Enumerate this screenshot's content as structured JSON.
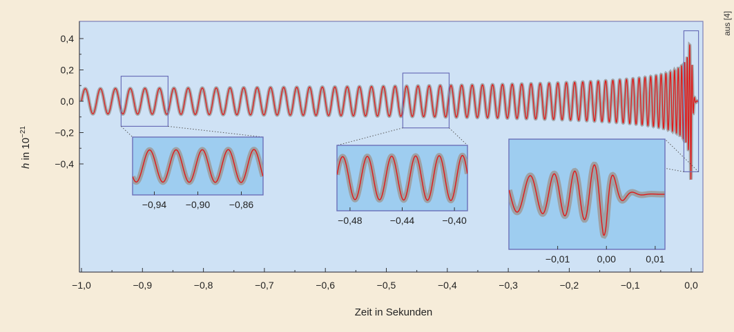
{
  "source_label": "aus [4]",
  "colors": {
    "page_background": "#f6ecd9",
    "plot_background": "#cfe2f5",
    "inset_background": "#9ecdf0",
    "frame": "#6a6fb8",
    "signal": "#e01818",
    "uncertainty_band": "#9c9c9c"
  },
  "chart_data": [
    {
      "type": "line",
      "title": "",
      "xlabel": "Zeit in Sekunden",
      "ylabel": "h in 10⁻²¹",
      "ylabel_parts": {
        "var": "h",
        "rest": " in 10",
        "exp": "−21"
      },
      "xlim": [
        -1.0,
        0.03
      ],
      "ylim": [
        -1.4,
        0.5
      ],
      "x_ticks": [
        -1.0,
        -0.9,
        -0.8,
        -0.7,
        -0.6,
        -0.5,
        -0.4,
        -0.3,
        -0.2,
        -0.1,
        0.0
      ],
      "x_tick_labels": [
        "−1,0",
        "−0,9",
        "−0,8",
        "−0,7",
        "−0,6",
        "−0,5",
        "−0,4",
        "−0,3",
        "−0,2",
        "−0,1",
        "0,0"
      ],
      "y_ticks": [
        0.4,
        0.2,
        0.0,
        -0.2,
        -0.4
      ],
      "y_tick_labels": [
        "0,4",
        "0,2",
        "0,0",
        "−0,2",
        "−0,4"
      ],
      "series": [
        {
          "kind": "chirp waveform",
          "amplitude": 0.08,
          "peak_amplitude": 0.5,
          "frequency_start_hz": 40,
          "frequency_end_hz": 250,
          "merger_time": 0.0,
          "uncertainty_band": true
        }
      ],
      "highlight_regions": [
        {
          "x": [
            -0.935,
            -0.858
          ],
          "y": [
            -0.16,
            0.16
          ]
        },
        {
          "x": [
            -0.473,
            -0.397
          ],
          "y": [
            -0.17,
            0.18
          ]
        },
        {
          "x": [
            -0.012,
            0.012
          ],
          "y": [
            -0.45,
            0.45
          ]
        }
      ],
      "grid": false,
      "legend": false
    },
    {
      "type": "line",
      "title": "",
      "x_range": [
        -0.96,
        -0.84
      ],
      "x_ticks": [
        -0.94,
        -0.9,
        -0.86
      ],
      "x_tick_labels": [
        "−0,94",
        "−0,90",
        "−0,86"
      ],
      "series": [
        {
          "kind": "chirp waveform zoom",
          "amplitude": 0.08
        }
      ]
    },
    {
      "type": "line",
      "title": "",
      "x_range": [
        -0.49,
        -0.39
      ],
      "x_ticks": [
        -0.48,
        -0.44,
        -0.4
      ],
      "x_tick_labels": [
        "−0,48",
        "−0,44",
        "−0,40"
      ],
      "series": [
        {
          "kind": "chirp waveform zoom",
          "amplitude": 0.08
        }
      ]
    },
    {
      "type": "line",
      "title": "",
      "x_range": [
        -0.02,
        0.012
      ],
      "x_ticks": [
        -0.01,
        0.0,
        0.01
      ],
      "x_tick_labels": [
        "−0,01",
        "0,00",
        "0,01"
      ],
      "series": [
        {
          "kind": "merger and ringdown zoom",
          "peak_amplitude": 0.5
        }
      ]
    }
  ]
}
